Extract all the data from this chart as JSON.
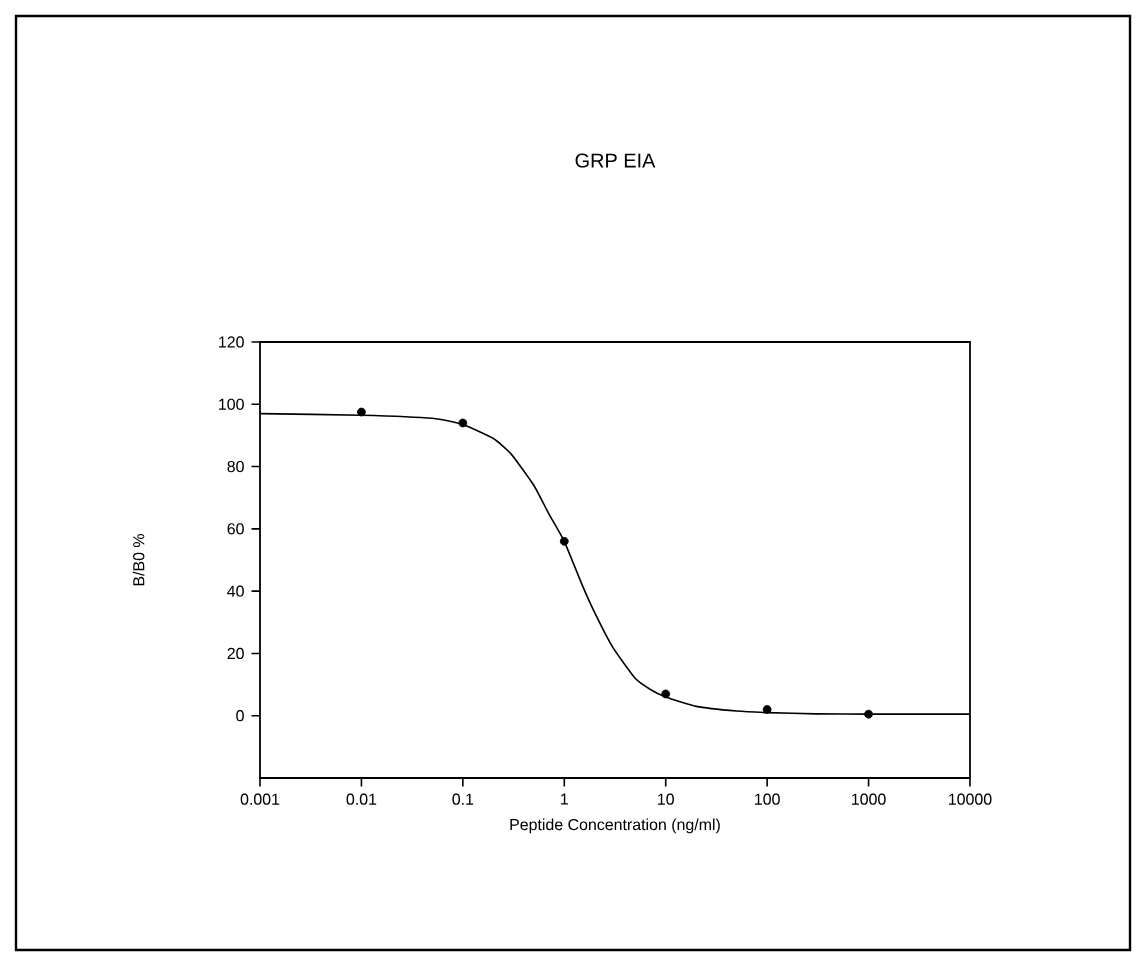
{
  "chart_data": {
    "type": "scatter",
    "title": "GRP  EIA",
    "xlabel": "Peptide Concentration (ng/ml)",
    "ylabel": "B/B0 %",
    "log": "x",
    "xlim": [
      0.001,
      10000
    ],
    "ylim": [
      -20,
      120
    ],
    "xticks": [
      0.001,
      0.01,
      0.1,
      1,
      10,
      100,
      1000,
      10000
    ],
    "yticks": [
      0,
      20,
      40,
      60,
      80,
      100,
      120
    ],
    "grid": false,
    "series": [
      {
        "marker": "circle",
        "color": "#000000",
        "x": [
          0.01,
          0.1,
          1,
          10,
          100,
          1000
        ],
        "values": [
          97.5,
          94,
          56,
          7,
          2,
          0.5
        ]
      },
      {
        "type": "line",
        "marker": "none",
        "line_style": "solid",
        "color": "#000000",
        "x": [
          0.001,
          0.01,
          0.05,
          0.1,
          0.2,
          0.3,
          0.5,
          0.7,
          1,
          1.5,
          2,
          3,
          5,
          7,
          10,
          20,
          50,
          100,
          300,
          1000,
          10000
        ],
        "values": [
          97,
          96.5,
          95.5,
          93.5,
          89,
          84,
          74,
          65,
          56,
          42,
          33,
          22,
          12,
          8.5,
          6,
          3,
          1.5,
          1,
          0.6,
          0.5,
          0.5
        ]
      }
    ]
  }
}
